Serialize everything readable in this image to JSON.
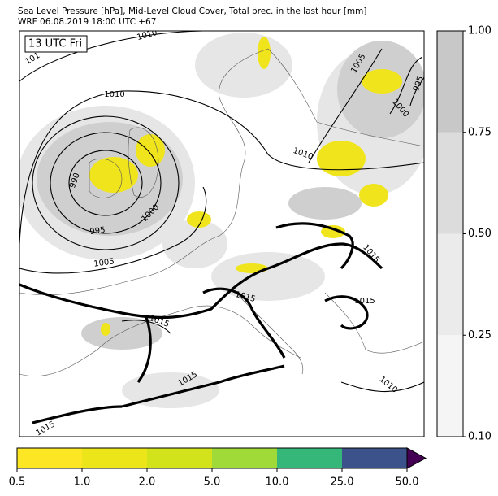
{
  "header": {
    "title_line1": "Sea Level Pressure [hPa], Mid-Level Cloud Cover, Total prec. in the last hour [mm]",
    "title_line2": "WRF 06.08.2019 18:00 UTC +67"
  },
  "map": {
    "time_label": "13 UTC Fri",
    "isobar_labels": [
      "1010",
      "101",
      "1005",
      "995",
      "1000",
      "1010",
      "1010",
      "990",
      "995",
      "1000",
      "1005",
      "1015",
      "1015",
      "1015",
      "1015",
      "1015",
      "1010",
      "1015"
    ]
  },
  "cloud_colorbar": {
    "colors": [
      "#f5f5f5",
      "#ebebeb",
      "#dcdcdc",
      "#c8c8c8"
    ],
    "ticks": [
      {
        "value": 0.1,
        "label": "0.10"
      },
      {
        "value": 0.25,
        "label": "0.25"
      },
      {
        "value": 0.5,
        "label": "0.50"
      },
      {
        "value": 0.75,
        "label": "0.75"
      },
      {
        "value": 1,
        "label": "1.00"
      }
    ]
  },
  "precip_colorbar": {
    "colors": [
      "#fde725",
      "#ebe51a",
      "#d2e21b",
      "#a0da39",
      "#35b779",
      "#3b528b"
    ],
    "extend_color": "#440154",
    "ticks": [
      {
        "value": 0.5,
        "label": "0.5"
      },
      {
        "value": 1,
        "label": "1.0"
      },
      {
        "value": 2,
        "label": "2.0"
      },
      {
        "value": 5,
        "label": "5.0"
      },
      {
        "value": 10,
        "label": "10.0"
      },
      {
        "value": 25,
        "label": "25.0"
      },
      {
        "value": 50,
        "label": "50.0"
      }
    ]
  }
}
